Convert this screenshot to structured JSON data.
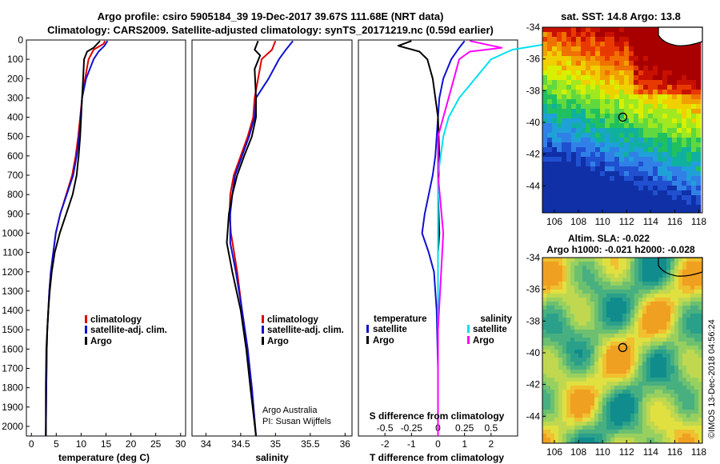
{
  "header": {
    "line1": "Argo profile: csiro 5905184_39 19-Dec-2017 39.67S 111.68E (NRT data)",
    "line2": "Climatology: CARS2009. Satellite-adjusted climatology: synTS_20171219.nc (0.59d earlier)"
  },
  "colors": {
    "climatology": "#e00000",
    "satellite": "#1010d0",
    "argo": "#000000",
    "sat_salinity": "#00e0f0",
    "argo_salinity": "#ff00ff"
  },
  "chart_data": [
    {
      "type": "line",
      "panel": "temperature",
      "xlabel": "temperature (deg C)",
      "xlim": [
        -1,
        31
      ],
      "ylim": [
        2050,
        0
      ],
      "x_ticks": [
        0,
        5,
        10,
        15,
        20,
        25,
        30
      ],
      "y_ticks": [
        0,
        100,
        200,
        300,
        400,
        500,
        600,
        700,
        800,
        900,
        1000,
        1100,
        1200,
        1300,
        1400,
        1500,
        1600,
        1700,
        1800,
        1900,
        2000
      ],
      "legend": [
        "climatology",
        "satellite-adj. clim.",
        "Argo"
      ],
      "series": [
        {
          "name": "climatology",
          "x": [
            14.8,
            14.5,
            12.5,
            11.5,
            10.8,
            10.2,
            9.8,
            9.4,
            8.9,
            8.2,
            7.0,
            5.8,
            4.9,
            4.4,
            3.9,
            3.6,
            3.4,
            3.2,
            3.1,
            3.0,
            2.9
          ],
          "y": [
            5,
            20,
            50,
            100,
            200,
            300,
            400,
            500,
            600,
            700,
            800,
            900,
            1000,
            1100,
            1200,
            1300,
            1400,
            1500,
            1600,
            1800,
            2050
          ]
        },
        {
          "name": "satellite-adj. clim.",
          "x": [
            15.3,
            14.7,
            13.5,
            12.5,
            11.0,
            10.2,
            9.9,
            9.6,
            9.1,
            8.4,
            7.1,
            5.8,
            4.9,
            4.4,
            3.9,
            3.6,
            3.4,
            3.2,
            3.1,
            3.0,
            2.9
          ],
          "y": [
            5,
            30,
            60,
            100,
            200,
            300,
            400,
            500,
            600,
            700,
            800,
            900,
            1000,
            1100,
            1200,
            1300,
            1400,
            1500,
            1600,
            1800,
            2050
          ]
        },
        {
          "name": "Argo",
          "x": [
            13.8,
            12.5,
            11.2,
            10.6,
            10.4,
            10.2,
            10.0,
            9.8,
            9.5,
            9.1,
            8.3,
            7.0,
            5.7,
            4.7,
            4.1,
            3.7,
            3.4,
            3.2,
            3.0,
            2.9,
            2.9
          ],
          "y": [
            5,
            40,
            60,
            100,
            200,
            300,
            400,
            500,
            600,
            700,
            800,
            900,
            1000,
            1100,
            1200,
            1300,
            1400,
            1500,
            1600,
            1800,
            2050
          ]
        }
      ]
    },
    {
      "type": "line",
      "panel": "salinity",
      "xlabel": "salinity",
      "xlim": [
        33.8,
        36.1
      ],
      "ylim": [
        2050,
        0
      ],
      "x_ticks": [
        34,
        34.5,
        35,
        35.5,
        36
      ],
      "x_tick_labels": [
        "34",
        "34.5",
        "35",
        "35.5",
        "36"
      ],
      "legend": [
        "climatology",
        "satellite-adj. clim.",
        "Argo"
      ],
      "annotations": [
        "Argo Australia",
        "PI: Susan Wijffels"
      ],
      "series": [
        {
          "name": "climatology",
          "x": [
            35.0,
            34.95,
            34.8,
            34.75,
            34.7,
            34.68,
            34.6,
            34.5,
            34.4,
            34.35,
            34.34,
            34.36,
            34.45,
            34.52,
            34.6,
            34.66,
            34.72
          ],
          "y": [
            5,
            50,
            100,
            200,
            300,
            400,
            500,
            600,
            700,
            800,
            900,
            1000,
            1200,
            1400,
            1600,
            1800,
            2050
          ]
        },
        {
          "name": "satellite-adj. clim.",
          "x": [
            35.25,
            35.15,
            35.05,
            34.9,
            34.72,
            34.7,
            34.62,
            34.52,
            34.42,
            34.38,
            34.35,
            34.35,
            34.43,
            34.52,
            34.6,
            34.66,
            34.72
          ],
          "y": [
            5,
            50,
            100,
            200,
            300,
            400,
            500,
            600,
            700,
            800,
            900,
            1050,
            1200,
            1400,
            1600,
            1800,
            2050
          ]
        },
        {
          "name": "Argo",
          "x": [
            34.75,
            34.7,
            34.78,
            34.7,
            34.72,
            34.72,
            34.66,
            34.55,
            34.45,
            34.38,
            34.33,
            34.3,
            34.38,
            34.5,
            34.58,
            34.64,
            34.72
          ],
          "y": [
            5,
            50,
            80,
            150,
            300,
            400,
            500,
            600,
            700,
            800,
            900,
            1050,
            1200,
            1400,
            1600,
            1800,
            2050
          ]
        }
      ]
    },
    {
      "type": "line",
      "panel": "difference",
      "xlabel": "T difference from climatology",
      "x2label": "S difference from climatology",
      "xlim": [
        -3,
        3
      ],
      "ylim": [
        2050,
        0
      ],
      "x_ticks": [
        -2,
        -1,
        0,
        1,
        2
      ],
      "x2_ticks": [
        -0.5,
        -0.25,
        0,
        0.25,
        0.5
      ],
      "x2_tick_labels": [
        "-0.5",
        "-0.25",
        "0",
        "0.25",
        "0.5"
      ],
      "legend_left_title": "temperature",
      "legend_right_title": "salinity",
      "legend_left": [
        "satellite",
        "Argo"
      ],
      "legend_right": [
        "satellite",
        "Argo"
      ],
      "series": [
        {
          "name": "satellite",
          "x": [
            1.0,
            0.8,
            0.5,
            0.2,
            0.05,
            0,
            -0.1,
            -0.2,
            -0.35,
            -0.5,
            -0.6,
            -0.35,
            -0.15,
            -0.05,
            0,
            0
          ],
          "y": [
            5,
            40,
            100,
            200,
            300,
            400,
            600,
            700,
            800,
            900,
            1000,
            1100,
            1200,
            1400,
            1700,
            2050
          ]
        },
        {
          "name": "Argo",
          "x": [
            -1.0,
            -1.5,
            -0.7,
            -0.4,
            -0.2,
            -0.1,
            0,
            0.05,
            0,
            0.05,
            0,
            0,
            0,
            0,
            0
          ],
          "y": [
            5,
            30,
            60,
            100,
            200,
            300,
            400,
            600,
            800,
            1000,
            1100,
            1200,
            1500,
            1800,
            2050
          ]
        },
        {
          "name": "satellite salinity",
          "x": [
            1.2,
            0.7,
            0.5,
            0.35,
            0.2,
            0.1,
            0.05,
            0,
            0,
            0,
            0,
            0
          ],
          "y": [
            5,
            50,
            100,
            200,
            300,
            400,
            500,
            700,
            900,
            1200,
            1600,
            2050
          ]
        },
        {
          "name": "Argo salinity",
          "x": [
            0.3,
            0.6,
            0.3,
            0.2,
            0.15,
            0.1,
            0.05,
            0,
            0,
            0.05,
            0,
            0
          ],
          "y": [
            5,
            40,
            60,
            100,
            200,
            300,
            400,
            500,
            700,
            1000,
            1500,
            2050
          ]
        }
      ]
    }
  ],
  "maps": {
    "sst": {
      "title": "sat. SST: 14.8 Argo: 13.8",
      "lon_ticks": [
        "106",
        "108",
        "110",
        "112",
        "114",
        "116",
        "118"
      ],
      "lat_ticks": [
        "-34",
        "-36",
        "-38",
        "-40",
        "-42",
        "-44"
      ]
    },
    "sla": {
      "title1": "Altim. SLA: -0.022",
      "title2": "Argo h1000: -0.021 h2000: -0.028",
      "lon_ticks": [
        "106",
        "108",
        "110",
        "112",
        "114",
        "116",
        "118"
      ],
      "lat_ticks": [
        "-34",
        "-36",
        "-38",
        "-40",
        "-42",
        "-44"
      ]
    }
  },
  "stamp": "©IMOS 13-Dec-2018 04:56:24"
}
